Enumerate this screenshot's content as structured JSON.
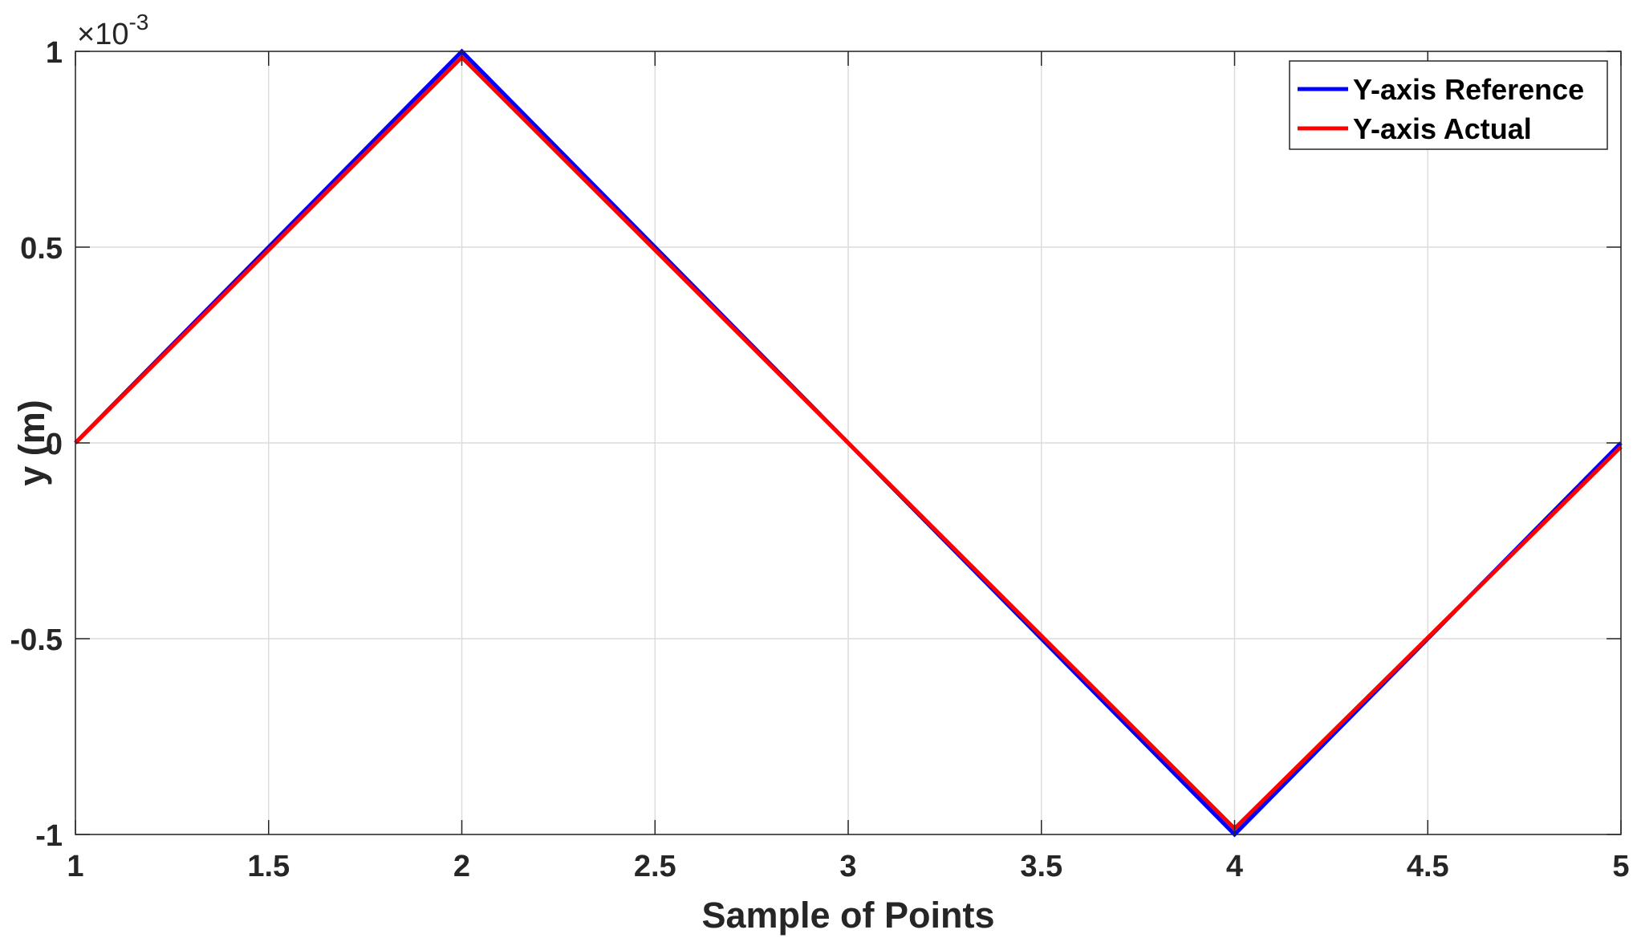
{
  "chart_data": {
    "type": "line",
    "title": "",
    "xlabel": "Sample of Points",
    "ylabel": "y (m)",
    "y_multiplier": {
      "base": "×10",
      "exponent": "-3"
    },
    "xlim": [
      1,
      5
    ],
    "ylim": [
      -1,
      1
    ],
    "xticks": [
      1,
      1.5,
      2,
      2.5,
      3,
      3.5,
      4,
      4.5,
      5
    ],
    "xtick_labels": [
      "1",
      "1.5",
      "2",
      "2.5",
      "3",
      "3.5",
      "4",
      "4.5",
      "5"
    ],
    "yticks": [
      -1,
      -0.5,
      0,
      0.5,
      1
    ],
    "ytick_labels": [
      "-1",
      "-0.5",
      "0",
      "0.5",
      "1"
    ],
    "grid": true,
    "legend_position": "top-right",
    "series": [
      {
        "name": "Y-axis Reference",
        "color": "#0000ff",
        "x": [
          1,
          2,
          3,
          4,
          5
        ],
        "y": [
          0,
          1,
          0,
          -1,
          0
        ]
      },
      {
        "name": "Y-axis Actual",
        "color": "#ff0000",
        "x": [
          1,
          2,
          3,
          4,
          5
        ],
        "y": [
          0,
          0.985,
          0,
          -0.985,
          -0.01
        ]
      }
    ]
  }
}
